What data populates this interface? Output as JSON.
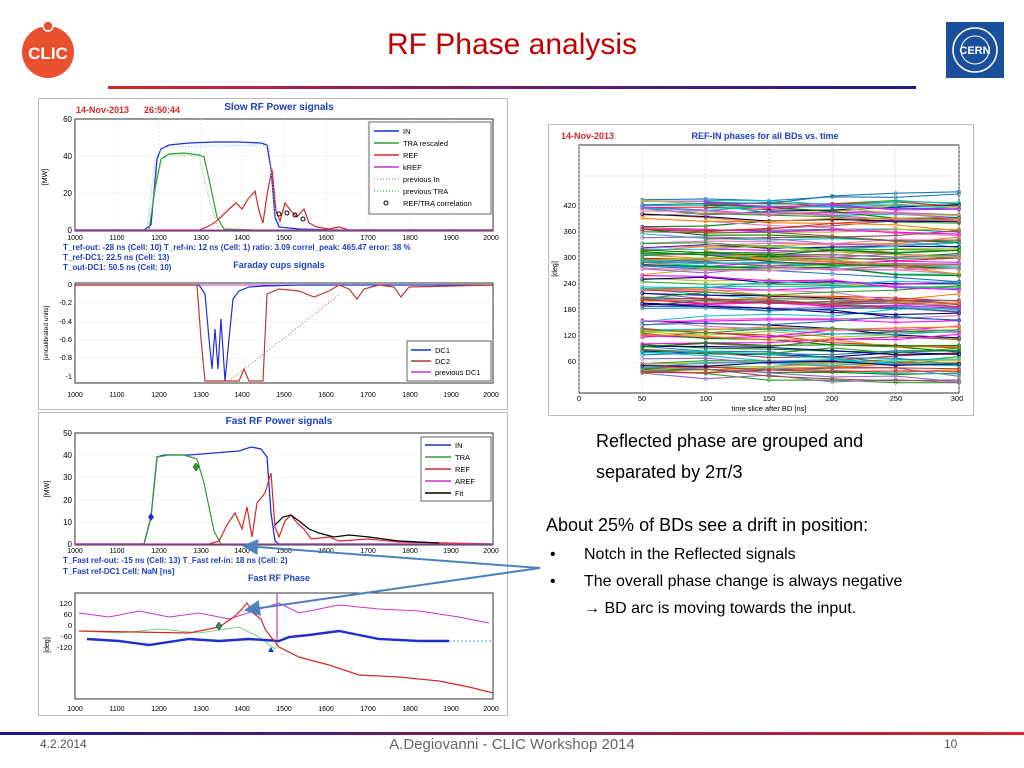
{
  "slide": {
    "title": "RF Phase analysis",
    "footer_date": "4.2.2014",
    "footer_center": "A.Degiovanni - CLIC Workshop 2014",
    "footer_page": "10",
    "colors": {
      "title": "#c00000",
      "rule_left": "#d7262b",
      "rule_right": "#1a1a8c",
      "clic": "#e8502e",
      "cern": "#1a4f9c"
    }
  },
  "logos": {
    "clic_text": "CLIC",
    "cern_text": "CERN"
  },
  "text": {
    "para1_line1": "Reflected phase are grouped and",
    "para1_line2": "separated by 2π/3",
    "para2_title": "About 25% of BDs see a drift in  position:",
    "bullet1": "Notch in the Reflected signals",
    "bullet2": "The overall phase change is always negative",
    "bullet2_cont": "→ BD arc is moving towards the input."
  },
  "fig_left": {
    "date": "14-Nov-2013",
    "time": "26:50:44",
    "slow_title": "Slow RF Power signals",
    "slow_ylabel": "[MW]",
    "slow_yticks": [
      "60",
      "40",
      "20",
      "0"
    ],
    "slow_xticks": [
      "1000",
      "1100",
      "1200",
      "1300",
      "1400",
      "1500",
      "1600",
      "1700",
      "1800",
      "1900",
      "2000"
    ],
    "slow_legend": [
      {
        "label": "IN",
        "color": "#1f2fd0",
        "style": "solid"
      },
      {
        "label": "TRA rescaled",
        "color": "#2ca02c",
        "style": "solid"
      },
      {
        "label": "REF",
        "color": "#d62728",
        "style": "solid"
      },
      {
        "label": "kREF",
        "color": "#cc33cc",
        "style": "solid"
      },
      {
        "label": "previous In",
        "color": "#7fb0ff",
        "style": "dot"
      },
      {
        "label": "previous TRA",
        "color": "#55cc55",
        "style": "dot"
      },
      {
        "label": "REF/TRA correlation",
        "color": "#000000",
        "style": "marker"
      }
    ],
    "info_line1": "T_ref-out: -28 ns (Cell: 10)    T_ref-in: 12 ns (Cell: 1)   ratio: 3.09  correl_peak: 465.47   error: 38 %",
    "info_line2": "T_ref-DC1: 22.5 ns (Cell: 13)",
    "info_line3": "T_out-DC1: 50.5 ns (Cell: 10)",
    "faraday_title": "Faraday cups signals",
    "faraday_ylabel": "[uncalibrated units]",
    "faraday_yticks": [
      "0",
      "-0.2",
      "-0.4",
      "-0.6",
      "-0.8",
      "-1"
    ],
    "faraday_legend": [
      {
        "label": "DC1",
        "color": "#1f2fd0"
      },
      {
        "label": "DC2",
        "color": "#c0392b"
      },
      {
        "label": "previous DC1",
        "color": "#cc33cc"
      }
    ],
    "fast_title": "Fast RF Power signals",
    "fast_ylabel": "[MW]",
    "fast_yticks": [
      "50",
      "40",
      "30",
      "20",
      "10",
      "0"
    ],
    "fast_legend": [
      {
        "label": "IN",
        "color": "#1f2fd0"
      },
      {
        "label": "TRA",
        "color": "#2ca02c"
      },
      {
        "label": "REF",
        "color": "#d62728"
      },
      {
        "label": "AREF",
        "color": "#cc33cc"
      },
      {
        "label": "Fit",
        "color": "#000000"
      }
    ],
    "fast_info1": "T_Fast ref-out: -15 ns  (Cell: 13)    T_Fast ref-in: 18 ns (Cell: 2)",
    "fast_info2": "T_Fast ref-DC1    Cell: NaN          [ns]",
    "phase_title": "Fast RF Phase",
    "phase_ylabel": "[deg]",
    "phase_yticks": [
      "120",
      "60",
      "0",
      "-60",
      "-120"
    ]
  },
  "fig_right": {
    "date": "14-Nov-2013",
    "title": "REF-IN phases for all BDs vs. time",
    "ylabel": "[deg]",
    "xlabel": "time slice after BD [ns]",
    "yticks": [
      "420",
      "360",
      "300",
      "240",
      "180",
      "120",
      "60"
    ],
    "xticks": [
      "0",
      "50",
      "100",
      "150",
      "200",
      "250",
      "300"
    ]
  },
  "chart_data": {
    "type": "line",
    "title": "REF-IN phases for all BDs vs. time",
    "xlabel": "time slice after BD [ns]",
    "ylabel": "[deg]",
    "x": [
      50,
      100,
      150,
      200,
      250,
      300
    ],
    "xlim": [
      0,
      300
    ],
    "ylim": [
      0,
      480
    ],
    "grid": true,
    "note_groups": [
      {
        "level": 320
      },
      {
        "level": 220
      },
      {
        "level": 90
      }
    ]
  }
}
